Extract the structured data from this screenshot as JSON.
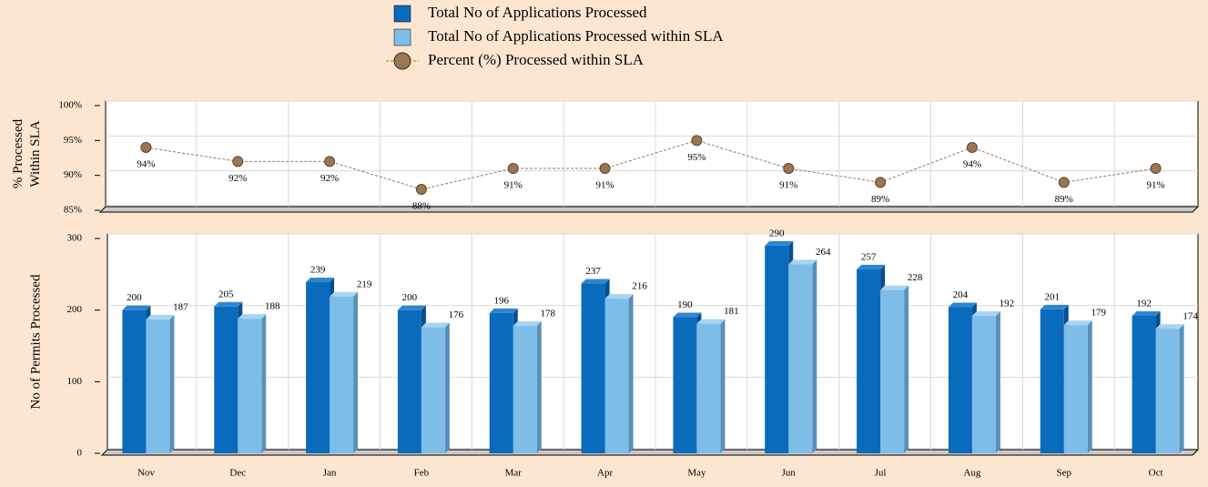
{
  "chart_data": [
    {
      "type": "line",
      "ylabel": [
        "% Processed",
        "Within SLA"
      ],
      "series": [
        {
          "name": "Percent (%) Processed within SLA",
          "color": "#9b7653",
          "values": [
            94,
            92,
            92,
            88,
            91,
            91,
            95,
            91,
            89,
            94,
            89,
            91
          ],
          "value_labels": [
            "94%",
            "92%",
            "92%",
            "88%",
            "91%",
            "91%",
            "95%",
            "91%",
            "89%",
            "94%",
            "89%",
            "91%"
          ]
        }
      ],
      "ylim": [
        85,
        100
      ],
      "yticks": [
        {
          "value": 85,
          "label": "85%"
        },
        {
          "value": 90,
          "label": "90%"
        },
        {
          "value": 95,
          "label": "95%"
        },
        {
          "value": 100,
          "label": "100%"
        }
      ],
      "grid": true
    },
    {
      "type": "bar",
      "ylabel": "No of Permits Processed",
      "categories": [
        "Nov",
        "Dec",
        "Jan",
        "Feb",
        "Mar",
        "Apr",
        "May",
        "Jun",
        "Jul",
        "Aug",
        "Sep",
        "Oct"
      ],
      "series": [
        {
          "name": "Total No of Applications Processed",
          "color": "#0a6bbd",
          "values": [
            200,
            205,
            239,
            200,
            196,
            237,
            190,
            290,
            257,
            204,
            201,
            192
          ]
        },
        {
          "name": "Total No of Applications Processed within SLA",
          "color": "#7fbde9",
          "values": [
            187,
            188,
            219,
            176,
            178,
            216,
            181,
            264,
            228,
            192,
            179,
            174
          ]
        }
      ],
      "ylim": [
        0,
        300
      ],
      "yticks": [
        0,
        100,
        200,
        300
      ],
      "grid": true
    }
  ]
}
